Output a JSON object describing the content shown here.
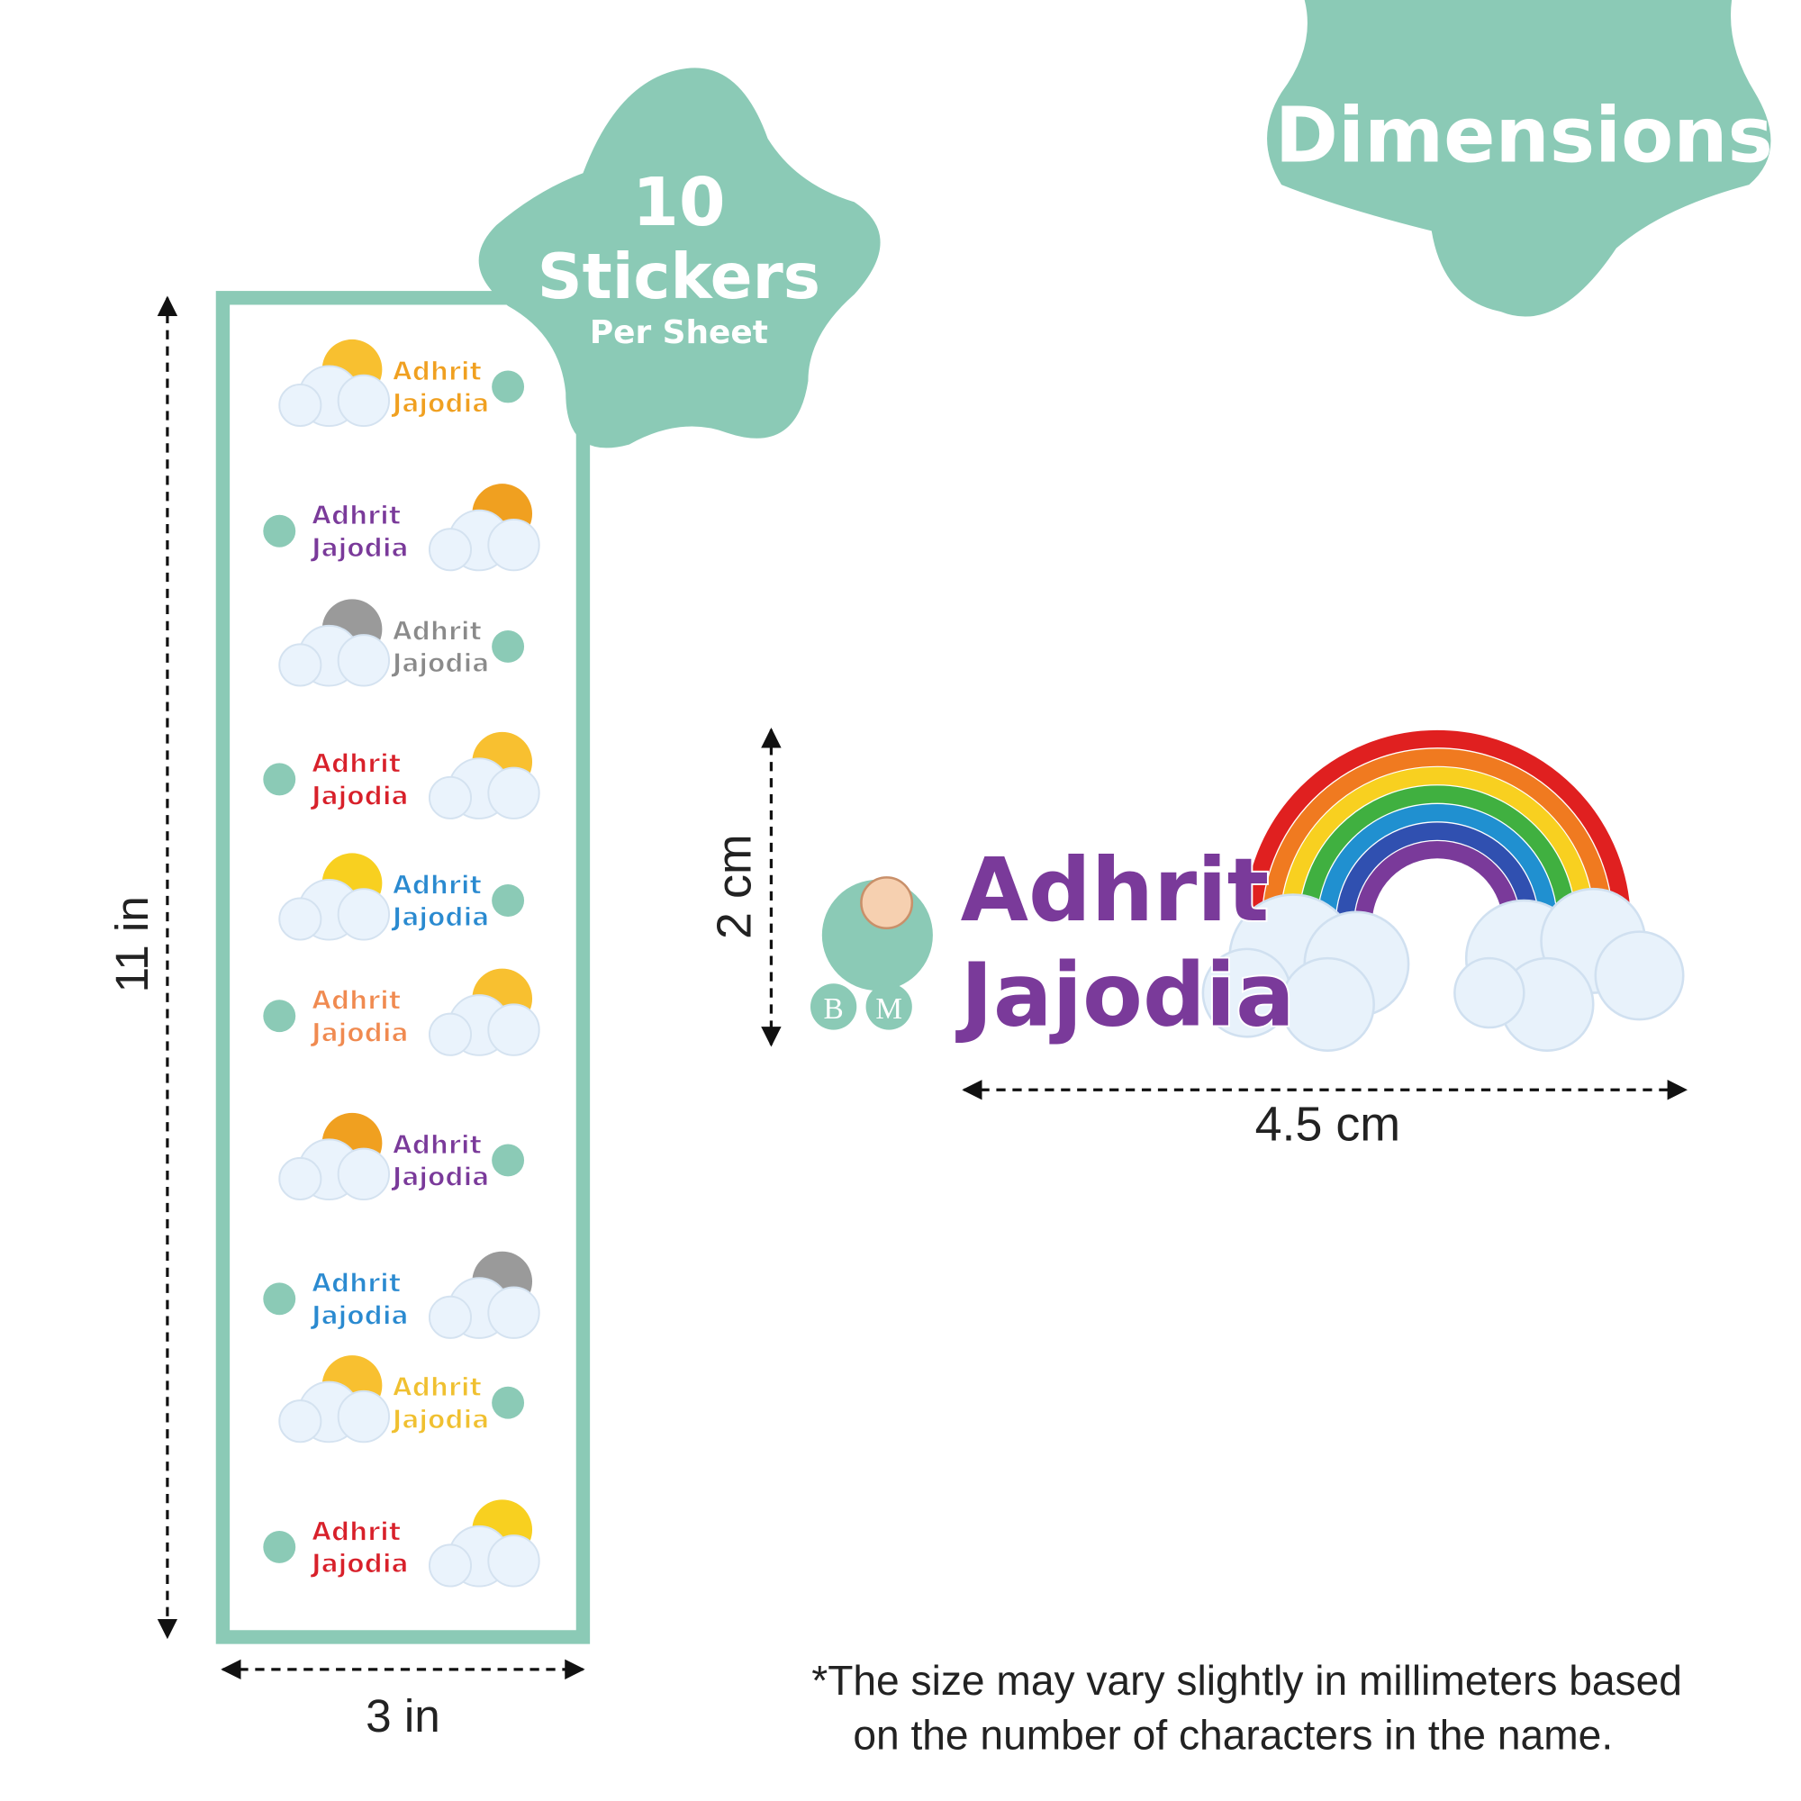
{
  "badge": {
    "title": "Dimensions"
  },
  "sheet_badge": {
    "count": "10",
    "label": "Stickers",
    "sub": "Per Sheet"
  },
  "sheet": {
    "height": "11 in",
    "width": "3 in",
    "stickers": [
      {
        "first": "Adhrit",
        "last": "Jajodia",
        "color": "#f0a020"
      },
      {
        "first": "Adhrit",
        "last": "Jajodia",
        "color": "#7a3a9a"
      },
      {
        "first": "Adhrit",
        "last": "Jajodia",
        "color": "#8a8a8a"
      },
      {
        "first": "Adhrit",
        "last": "Jajodia",
        "color": "#d8202a"
      },
      {
        "first": "Adhrit",
        "last": "Jajodia",
        "color": "#2a8ad0"
      },
      {
        "first": "Adhrit",
        "last": "Jajodia",
        "color": "#f08a50"
      },
      {
        "first": "Adhrit",
        "last": "Jajodia",
        "color": "#7a3a9a"
      },
      {
        "first": "Adhrit",
        "last": "Jajodia",
        "color": "#2a8ad0"
      },
      {
        "first": "Adhrit",
        "last": "Jajodia",
        "color": "#f0c030"
      },
      {
        "first": "Adhrit",
        "last": "Jajodia",
        "color": "#d8202a"
      }
    ]
  },
  "sample": {
    "first": "Adhrit",
    "last": "Jajodia",
    "logo_left": "B",
    "logo_right": "M",
    "height": "2 cm",
    "width": "4.5 cm"
  },
  "note": [
    "*The size may vary slightly in millimeters based",
    "on the number of characters in the name."
  ]
}
